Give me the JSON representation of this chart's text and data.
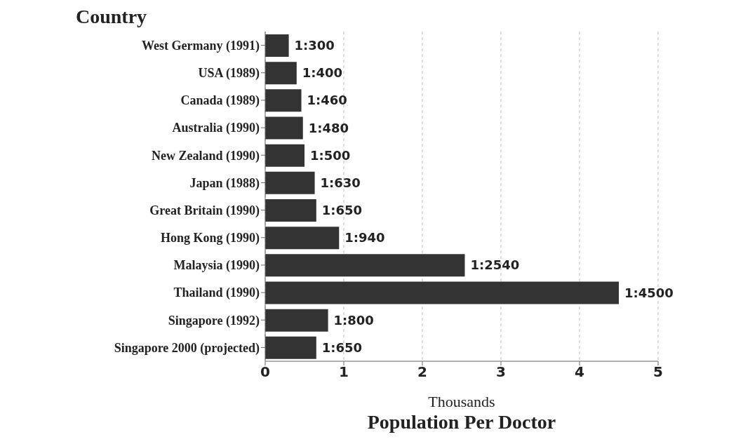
{
  "chart_data": {
    "type": "bar",
    "orientation": "horizontal",
    "ylabel": "Country",
    "xlabel": "Population Per Doctor",
    "annotations": [
      "Thousands"
    ],
    "categories": [
      "West Germany (1991)",
      "USA (1989)",
      "Canada (1989)",
      "Australia (1990)",
      "New Zealand (1990)",
      "Japan (1988)",
      "Great Britain (1990)",
      "Hong Kong (1990)",
      "Malaysia (1990)",
      "Thailand (1990)",
      "Singapore (1992)",
      "Singapore 2000  (projected)"
    ],
    "values": [
      0.3,
      0.4,
      0.46,
      0.48,
      0.5,
      0.63,
      0.65,
      0.94,
      2.54,
      4.5,
      0.8,
      0.65
    ],
    "value_labels": [
      "1:300",
      "1:400",
      "1:460",
      "1:480",
      "1:500",
      "1:630",
      "1:650",
      "1:940",
      "1:2540",
      "1:4500",
      "1:800",
      "1:650"
    ],
    "color": "#333333",
    "xlim": [
      0,
      5
    ],
    "xticks": [
      0,
      1,
      2,
      3,
      4,
      5
    ],
    "grid": "x"
  }
}
